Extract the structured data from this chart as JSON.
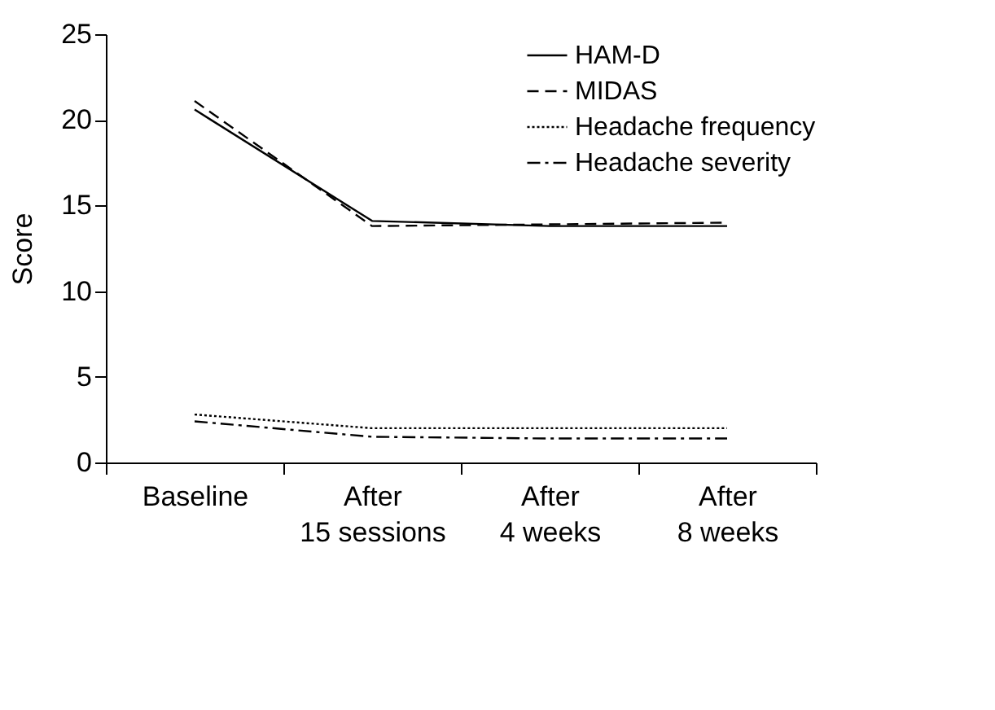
{
  "chart_data": {
    "type": "line",
    "ylabel": "Score",
    "categories": [
      "Baseline",
      "After\n15 sessions",
      "After\n4 weeks",
      "After\n8 weeks"
    ],
    "ylim": [
      0,
      25
    ],
    "yticks": [
      0,
      5,
      10,
      15,
      20,
      25
    ],
    "grid": false,
    "legend": "top right",
    "series": [
      {
        "name": "HAM-D",
        "color": "#000000",
        "line_style": "solid",
        "values": [
          20.6,
          14.1,
          13.8,
          13.8
        ]
      },
      {
        "name": "MIDAS",
        "color": "#000000",
        "line_style": "dashed",
        "values": [
          21.1,
          13.8,
          13.9,
          14.0
        ]
      },
      {
        "name": "Headache frequency",
        "color": "#000000",
        "line_style": "dotted",
        "values": [
          2.8,
          2.0,
          2.0,
          2.0
        ]
      },
      {
        "name": "Headache severity",
        "color": "#000000",
        "line_style": "dashdot",
        "values": [
          2.4,
          1.5,
          1.4,
          1.4
        ]
      }
    ]
  }
}
